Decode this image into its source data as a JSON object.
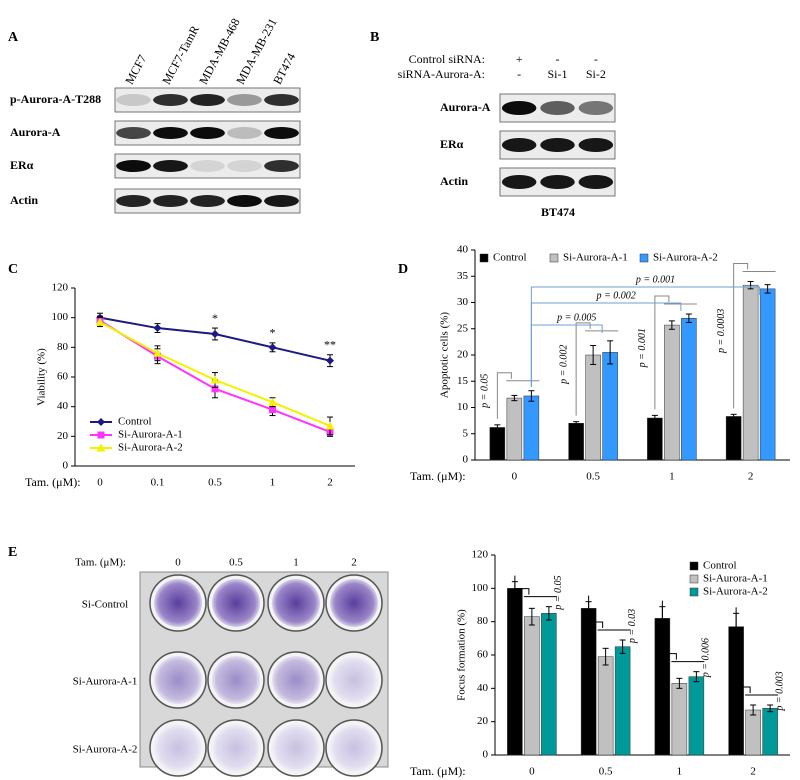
{
  "panel_labels": [
    "A",
    "B",
    "C",
    "D",
    "E"
  ],
  "blot_a": {
    "lanes": [
      "MCF7",
      "MCF7-TamR",
      "MDA-MB-468",
      "MDA-MB-231",
      "BT474"
    ],
    "rows": [
      "p-Aurora-A-T288",
      "Aurora-A",
      "ERα",
      "Actin"
    ]
  },
  "blot_b": {
    "conditions": [
      {
        "label": "Control siRNA:",
        "lanes": [
          "+",
          "-",
          "-"
        ]
      },
      {
        "label": "siRNA-Aurora-A:",
        "lanes": [
          "-",
          "Si-1",
          "Si-2"
        ]
      }
    ],
    "rows": [
      "Aurora-A",
      "ERα",
      "Actin"
    ],
    "cell_line": "BT474"
  },
  "plate_e": {
    "x_label": "Tam. (μM):",
    "doses": [
      "0",
      "0.5",
      "1",
      "2"
    ],
    "rows": [
      "Si-Control",
      "Si-Aurora-A-1",
      "Si-Aurora-A-2"
    ]
  },
  "chart_data": [
    {
      "type": "line",
      "y_label": "Viability (%)",
      "x_label": "Tam. (μM):",
      "categories": [
        "0",
        "0.1",
        "0.5",
        "1",
        "2"
      ],
      "series": [
        {
          "name": "Control",
          "color": "#1a1a80",
          "marker": "diamond",
          "values": [
            100,
            93,
            89,
            80,
            71
          ],
          "errors": [
            3,
            3,
            4,
            3,
            4
          ]
        },
        {
          "name": "Si-Aurora-A-1",
          "color": "#ff33ff",
          "marker": "square",
          "values": [
            98,
            74,
            52,
            38,
            23
          ],
          "errors": [
            3,
            5,
            6,
            4,
            3
          ]
        },
        {
          "name": "Si-Aurora-A-2",
          "color": "#f2f200",
          "marker": "triangle",
          "values": [
            97,
            76,
            58,
            43,
            27
          ],
          "errors": [
            3,
            5,
            5,
            3,
            6
          ]
        }
      ],
      "annotations": [
        "*",
        "*",
        "**"
      ],
      "ylim": [
        0,
        120
      ],
      "yticks": [
        0,
        20,
        40,
        60,
        80,
        100,
        120
      ],
      "legend": "lower left"
    },
    {
      "type": "bar",
      "y_label": "Apoptotic cells (%)",
      "x_label": "Tam. (μM):",
      "categories": [
        "0",
        "0.5",
        "1",
        "2"
      ],
      "series": [
        {
          "name": "Control",
          "color": "#000000",
          "values": [
            6.2,
            7.0,
            8.0,
            8.3
          ],
          "errors": [
            0.5,
            0.3,
            0.5,
            0.4
          ]
        },
        {
          "name": "Si-Aurora-A-1",
          "color": "#c0c0c0",
          "values": [
            11.8,
            20.0,
            25.7,
            33.3
          ],
          "errors": [
            0.5,
            1.8,
            0.8,
            0.7
          ]
        },
        {
          "name": "Si-Aurora-A-2",
          "color": "#3399ff",
          "values": [
            12.2,
            20.5,
            27.0,
            32.6
          ],
          "errors": [
            1.0,
            2.2,
            0.8,
            0.8
          ]
        }
      ],
      "annotations": [
        "p = 0.05",
        "p = 0.002",
        "p = 0.001",
        "p = 0.0003"
      ],
      "comparisons": [
        "p = 0.005",
        "p = 0.002",
        "p = 0.001"
      ],
      "ylim": [
        0,
        40
      ],
      "yticks": [
        0,
        5,
        10,
        15,
        20,
        25,
        30,
        35,
        40
      ],
      "legend": "top"
    },
    {
      "type": "bar",
      "y_label": "Focus formation (%)",
      "x_label": "Tam. (μM):",
      "categories": [
        "0",
        "0.5",
        "1",
        "2"
      ],
      "series": [
        {
          "name": "Control",
          "color": "#000000",
          "values": [
            100,
            88,
            82,
            77
          ],
          "errors": [
            4,
            4,
            7,
            8
          ]
        },
        {
          "name": "Si-Aurora-A-1",
          "color": "#c0c0c0",
          "values": [
            83,
            59,
            43,
            27
          ],
          "errors": [
            5,
            5,
            3,
            3
          ]
        },
        {
          "name": "Si-Aurora-A-2",
          "color": "#009999",
          "values": [
            85,
            65,
            47,
            28
          ],
          "errors": [
            4,
            4,
            3,
            2
          ]
        }
      ],
      "annotations": [
        "p = 0.05",
        "p = 0.03",
        "p = 0.006",
        "p = 0.003"
      ],
      "ylim": [
        0,
        120
      ],
      "yticks": [
        0,
        20,
        40,
        60,
        80,
        100,
        120
      ],
      "legend": "upper right"
    }
  ]
}
